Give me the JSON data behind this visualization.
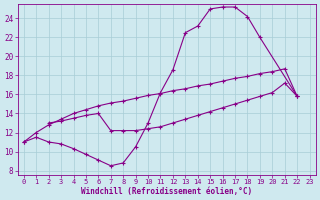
{
  "title": "",
  "xlabel": "Windchill (Refroidissement éolien,°C)",
  "ylabel": "",
  "xlim": [
    -0.5,
    23.5
  ],
  "ylim": [
    7.5,
    25.5
  ],
  "xticks": [
    0,
    1,
    2,
    3,
    4,
    5,
    6,
    7,
    8,
    9,
    10,
    11,
    12,
    13,
    14,
    15,
    16,
    17,
    18,
    19,
    20,
    21,
    22,
    23
  ],
  "yticks": [
    8,
    10,
    12,
    14,
    16,
    18,
    20,
    22,
    24
  ],
  "bg_color": "#cfe9ef",
  "grid_color": "#a8cdd6",
  "line_color": "#880088",
  "series1": [
    [
      0,
      11.0
    ],
    [
      1,
      11.5
    ],
    [
      2,
      11.0
    ],
    [
      3,
      10.8
    ],
    [
      4,
      10.3
    ],
    [
      5,
      9.7
    ],
    [
      6,
      9.1
    ],
    [
      7,
      8.5
    ],
    [
      8,
      8.8
    ],
    [
      9,
      10.5
    ],
    [
      10,
      13.0
    ],
    [
      11,
      16.2
    ],
    [
      12,
      18.6
    ],
    [
      13,
      22.5
    ],
    [
      14,
      23.2
    ],
    [
      15,
      25.0
    ],
    [
      16,
      25.2
    ],
    [
      17,
      25.2
    ],
    [
      18,
      24.2
    ],
    [
      19,
      22.0
    ],
    [
      22,
      15.8
    ]
  ],
  "series2": [
    [
      0,
      11.0
    ],
    [
      1,
      12.0
    ],
    [
      2,
      12.8
    ],
    [
      3,
      13.4
    ],
    [
      4,
      14.0
    ],
    [
      5,
      14.4
    ],
    [
      6,
      14.8
    ],
    [
      7,
      15.1
    ],
    [
      8,
      15.3
    ],
    [
      9,
      15.6
    ],
    [
      10,
      15.9
    ],
    [
      11,
      16.1
    ],
    [
      12,
      16.4
    ],
    [
      13,
      16.6
    ],
    [
      14,
      16.9
    ],
    [
      15,
      17.1
    ],
    [
      16,
      17.4
    ],
    [
      17,
      17.7
    ],
    [
      18,
      17.9
    ],
    [
      19,
      18.2
    ],
    [
      20,
      18.4
    ],
    [
      21,
      18.7
    ],
    [
      22,
      15.8
    ]
  ],
  "series3": [
    [
      2,
      13.0
    ],
    [
      3,
      13.2
    ],
    [
      4,
      13.5
    ],
    [
      5,
      13.8
    ],
    [
      6,
      14.0
    ],
    [
      7,
      12.2
    ],
    [
      8,
      12.2
    ],
    [
      9,
      12.2
    ],
    [
      10,
      12.4
    ],
    [
      11,
      12.6
    ],
    [
      12,
      13.0
    ],
    [
      13,
      13.4
    ],
    [
      14,
      13.8
    ],
    [
      15,
      14.2
    ],
    [
      16,
      14.6
    ],
    [
      17,
      15.0
    ],
    [
      18,
      15.4
    ],
    [
      19,
      15.8
    ],
    [
      20,
      16.2
    ],
    [
      21,
      17.2
    ],
    [
      22,
      15.8
    ]
  ]
}
